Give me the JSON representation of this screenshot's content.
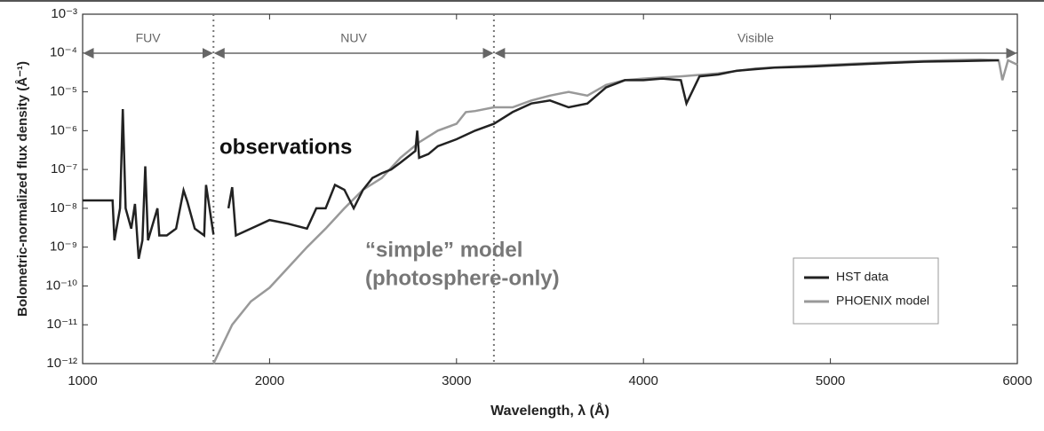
{
  "chart_data": {
    "type": "line",
    "x_label": "Wavelength, λ (Å)",
    "y_label": "Bolometric-normalized flux density (Å⁻¹)",
    "log_y": true,
    "xlim": [
      1000,
      6000
    ],
    "ylim": [
      1e-12,
      0.001
    ],
    "xticks": [
      1000,
      2000,
      3000,
      4000,
      5000,
      6000
    ],
    "yticks": [
      {
        "value": 1e-12,
        "label": "10⁻¹²"
      },
      {
        "value": 1e-11,
        "label": "10⁻¹¹"
      },
      {
        "value": 1e-10,
        "label": "10⁻¹⁰"
      },
      {
        "value": 1e-09,
        "label": "10⁻⁹"
      },
      {
        "value": 1e-08,
        "label": "10⁻⁸"
      },
      {
        "value": 1e-07,
        "label": "10⁻⁷"
      },
      {
        "value": 1e-06,
        "label": "10⁻⁶"
      },
      {
        "value": 1e-05,
        "label": "10⁻⁵"
      },
      {
        "value": 0.0001,
        "label": "10⁻⁴"
      },
      {
        "value": 0.001,
        "label": "10⁻³"
      }
    ],
    "regions": [
      {
        "label": "FUV",
        "start": 1000,
        "end": 1700
      },
      {
        "label": "NUV",
        "start": 1700,
        "end": 3200
      },
      {
        "label": "Visible",
        "start": 3200,
        "end": 6000
      }
    ],
    "legend_position": "lower right",
    "annotations": [
      {
        "text": "observations",
        "color": "#111111"
      },
      {
        "text": "“simple” model",
        "color": "#777777"
      },
      {
        "text": "(photosphere-only)",
        "color": "#777777"
      }
    ],
    "series": [
      {
        "name": "HST data",
        "color": "#222222",
        "x": [
          1000,
          1160,
          1170,
          1200,
          1215,
          1230,
          1260,
          1280,
          1300,
          1320,
          1335,
          1350,
          1400,
          1410,
          1450,
          1500,
          1540,
          1560,
          1600,
          1650,
          1660,
          1700,
          1740,
          1780,
          1800,
          1820,
          1900,
          2000,
          2100,
          2200,
          2250,
          2300,
          2350,
          2400,
          2450,
          2500,
          2550,
          2600,
          2650,
          2700,
          2780,
          2790,
          2800,
          2850,
          2900,
          3000,
          3100,
          3200,
          3300,
          3400,
          3500,
          3600,
          3700,
          3800,
          3900,
          4000,
          4100,
          4200,
          4230,
          4300,
          4400,
          4500,
          4700,
          4900,
          5100,
          5300,
          5500,
          5700,
          5900
        ],
        "values": [
          1.6e-08,
          1.6e-08,
          1.5e-09,
          1e-08,
          3.6e-06,
          1e-08,
          3e-09,
          1.3e-08,
          5e-10,
          1.5e-09,
          1.2e-07,
          1.5e-09,
          1e-08,
          2e-09,
          2e-09,
          3e-09,
          2.9e-08,
          1.5e-08,
          3e-09,
          2e-09,
          4e-08,
          2.1e-09,
          null,
          1e-08,
          3.5e-08,
          2e-09,
          3e-09,
          5e-09,
          4e-09,
          3e-09,
          1e-08,
          1e-08,
          4e-08,
          3e-08,
          1e-08,
          3e-08,
          6e-08,
          8e-08,
          1e-07,
          1.5e-07,
          3e-07,
          1e-06,
          2e-07,
          2.5e-07,
          4e-07,
          6e-07,
          1e-06,
          1.5e-06,
          3e-06,
          5e-06,
          6e-06,
          4e-06,
          5e-06,
          1.3e-05,
          2e-05,
          2e-05,
          2.2e-05,
          2e-05,
          5e-06,
          2.5e-05,
          2.8e-05,
          3.5e-05,
          4.2e-05,
          4.5e-05,
          5e-05,
          5.5e-05,
          6e-05,
          6.2e-05,
          6.5e-05
        ]
      },
      {
        "name": "PHOENIX model",
        "color": "#999999",
        "x": [
          1700,
          1800,
          1900,
          2000,
          2100,
          2200,
          2300,
          2400,
          2500,
          2600,
          2700,
          2800,
          2900,
          3000,
          3050,
          3100,
          3200,
          3300,
          3400,
          3500,
          3600,
          3700,
          3800,
          3900,
          4000,
          4200,
          4400,
          4600,
          4800,
          5000,
          5200,
          5400,
          5600,
          5800,
          5900,
          5920,
          5950,
          6000
        ],
        "values": [
          1e-12,
          1e-11,
          4e-11,
          9e-11,
          3e-10,
          1e-09,
          3e-09,
          1e-08,
          3e-08,
          6e-08,
          2e-07,
          5e-07,
          1e-06,
          1.5e-06,
          3e-06,
          3.2e-06,
          4e-06,
          4e-06,
          6e-06,
          8e-06,
          1e-05,
          8e-06,
          1.5e-05,
          2e-05,
          2.2e-05,
          2.5e-05,
          3e-05,
          4e-05,
          4.5e-05,
          5e-05,
          5.5e-05,
          6e-05,
          6.5e-05,
          6.8e-05,
          6.5e-05,
          2e-05,
          6.5e-05,
          5e-05
        ]
      }
    ]
  }
}
